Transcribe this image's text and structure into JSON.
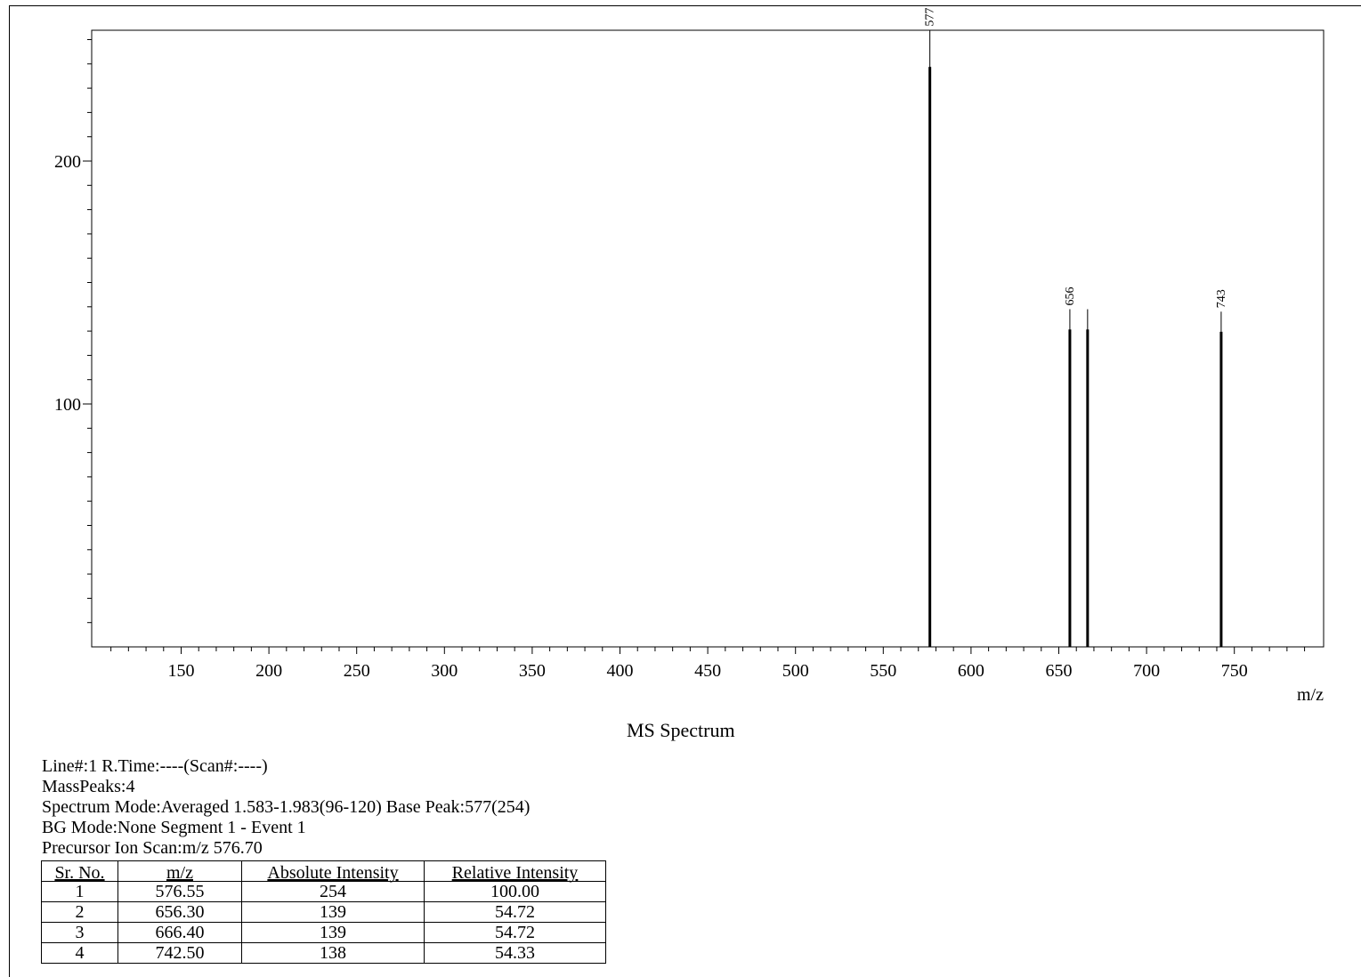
{
  "chart_data": {
    "type": "bar",
    "title": "MS Spectrum",
    "xlabel": "m/z",
    "ylabel": "",
    "xlim": [
      100,
      800
    ],
    "ylim": [
      0,
      255
    ],
    "x_ticks": [
      150,
      200,
      250,
      300,
      350,
      400,
      450,
      500,
      550,
      600,
      650,
      700,
      750
    ],
    "y_ticks": [
      100,
      200
    ],
    "grid": false,
    "peaks": [
      {
        "mz": 576.55,
        "intensity": 254,
        "label": "577"
      },
      {
        "mz": 656.3,
        "intensity": 139,
        "label": "656"
      },
      {
        "mz": 666.4,
        "intensity": 139,
        "label": ""
      },
      {
        "mz": 742.5,
        "intensity": 138,
        "label": "743"
      }
    ]
  },
  "info": {
    "line1": "Line#:1   R.Time:----(Scan#:----)",
    "line2": "MassPeaks:4",
    "line3": "Spectrum Mode:Averaged 1.583-1.983(96-120)  Base Peak:577(254)",
    "line4": "BG Mode:None  Segment 1 - Event 1",
    "line5": "Precursor Ion Scan:m/z 576.70"
  },
  "table": {
    "headers": [
      "Sr. No.",
      "m/z",
      "Absolute Intensity",
      "Relative Intensity"
    ],
    "rows": [
      [
        "1",
        "576.55",
        "254",
        "100.00"
      ],
      [
        "2",
        "656.30",
        "139",
        "54.72"
      ],
      [
        "3",
        "666.40",
        "139",
        "54.72"
      ],
      [
        "4",
        "742.50",
        "138",
        "54.33"
      ]
    ]
  }
}
